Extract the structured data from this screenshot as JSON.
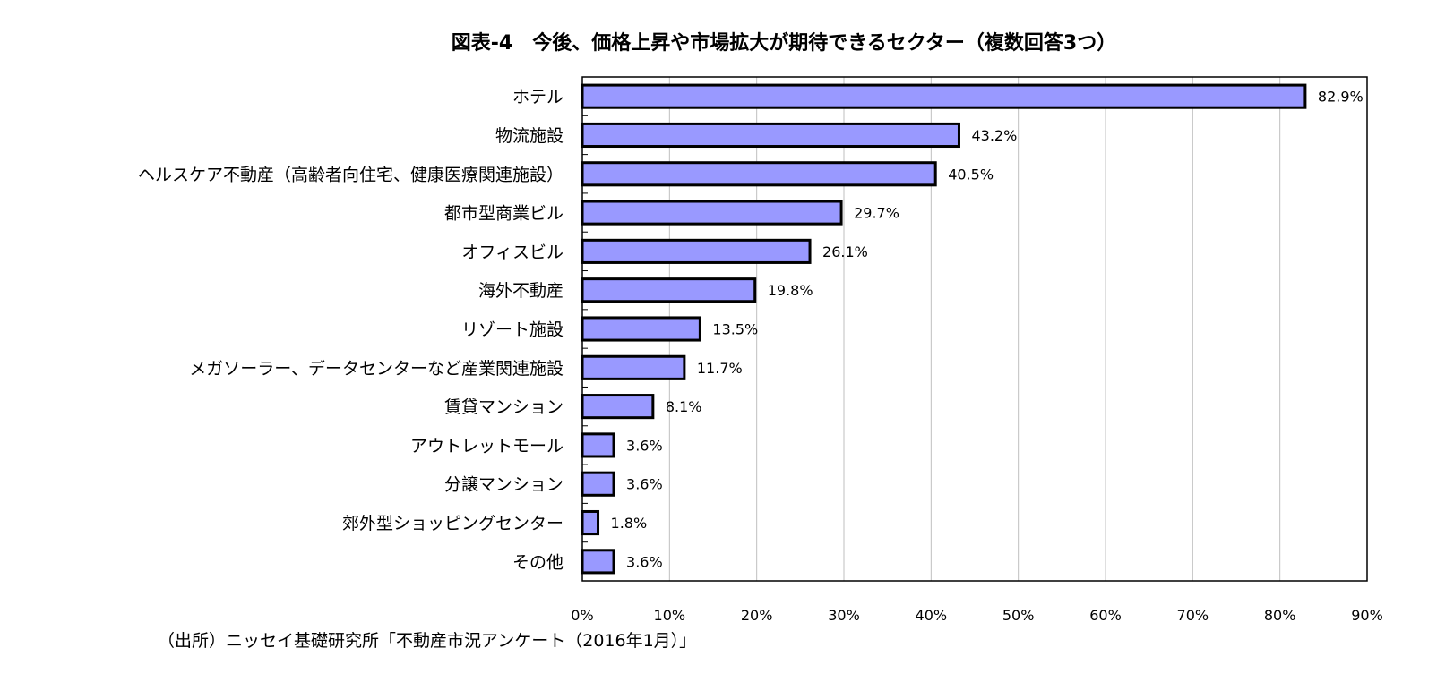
{
  "chart_data": {
    "type": "bar",
    "orientation": "horizontal",
    "title": "図表-4　今後、価格上昇や市場拡大が期待できるセクター（複数回答3つ）",
    "categories": [
      "ホテル",
      "物流施設",
      "ヘルスケア不動産（高齢者向住宅、健康医療関連施設）",
      "都市型商業ビル",
      "オフィスビル",
      "海外不動産",
      "リゾート施設",
      "メガソーラー、データセンターなど産業関連施設",
      "賃貸マンション",
      "アウトレットモール",
      "分譲マンション",
      "郊外型ショッピングセンター",
      "その他"
    ],
    "values": [
      82.9,
      43.2,
      40.5,
      29.7,
      26.1,
      19.8,
      13.5,
      11.7,
      8.1,
      3.6,
      3.6,
      1.8,
      3.6
    ],
    "data_labels": [
      "82.9%",
      "43.2%",
      "40.5%",
      "29.7%",
      "26.1%",
      "19.8%",
      "13.5%",
      "11.7%",
      "8.1%",
      "3.6%",
      "3.6%",
      "1.8%",
      "3.6%"
    ],
    "xlim": [
      0,
      90
    ],
    "xticks": [
      "0%",
      "10%",
      "20%",
      "30%",
      "40%",
      "50%",
      "60%",
      "70%",
      "80%",
      "90%"
    ],
    "grid": true,
    "bar_color": "#9999FF",
    "bar_edge_color": "#000000",
    "grid_color": "#BFBFBF",
    "source": "（出所）ニッセイ基礎研究所「不動産市況アンケート（2016年1月）」"
  }
}
